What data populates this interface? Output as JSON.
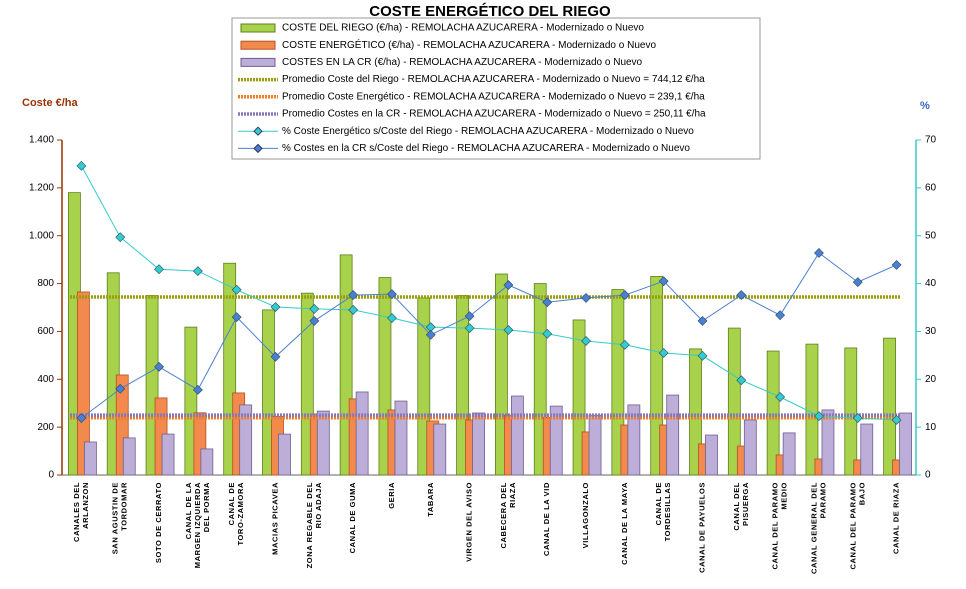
{
  "chart_data": {
    "type": "bar",
    "title": "COSTE ENERGÉTICO DEL RIEGO",
    "y_label": "Coste €/ha",
    "y2_label": "%",
    "categories": [
      "CANALES DEL ARLANZON",
      "SAN AGUSTIN DE TORDOMAR",
      "SOTO DE CERRATO",
      "CANAL DE LA MARGEN IZQUIERDA DEL PORMA",
      "CANAL DE TORO-ZAMORA",
      "MACIAS PICAVEA",
      "ZONA REGABLE DEL RIO ADAJA",
      "CANAL DE GUMA",
      "GERIA",
      "TABARA",
      "VIRGEN DEL AVISO",
      "CABECERA DEL RIAZA",
      "CANAL DE LA VID",
      "VILLAGONZALO",
      "CANAL DE LA MAYA",
      "CANAL DE TORDESILLAS",
      "CANAL DE PAYUELOS",
      "CANAL DEL PISUERGA",
      "CANAL DEL PARAMO MEDIO",
      "CANAL GENERAL DEL PARAMO",
      "CANAL DEL PARAMO BAJO",
      "CANAL DE RIAZA"
    ],
    "series": [
      {
        "name": "COSTE DEL RIEGO (€/ha) - REMOLACHA AZUCARERA - Modernizado o Nuevo",
        "type": "bar",
        "color": "#a8d24c",
        "values": [
          1180,
          845,
          750,
          618,
          885,
          690,
          760,
          920,
          825,
          740,
          750,
          840,
          800,
          648,
          775,
          830,
          527,
          614,
          518,
          547,
          531,
          572
        ]
      },
      {
        "name": "COSTE ENERGÉTICO (€/ha) - REMOLACHA AZUCARERA - Modernizado o Nuevo",
        "type": "bar",
        "color": "#f28a4e",
        "values": [
          765,
          418,
          322,
          260,
          343,
          245,
          255,
          318,
          272,
          226,
          230,
          250,
          240,
          180,
          209,
          209,
          130,
          121,
          84,
          67,
          63,
          63
        ]
      },
      {
        "name": "COSTES EN LA CR (€/ha) - REMOLACHA AZUCARERA - Modernizado o Nuevo",
        "type": "bar",
        "color": "#bcaed8",
        "values": [
          138,
          155,
          171,
          109,
          293,
          171,
          267,
          347,
          309,
          213,
          259,
          330,
          288,
          250,
          293,
          334,
          167,
          230,
          176,
          272,
          213,
          259
        ]
      },
      {
        "name": "Promedio Coste del Riego - REMOLACHA AZUCARERA - Modernizado o Nuevo = 744,12 €/ha",
        "type": "hline",
        "color": "#9c9c10",
        "value": 744.12
      },
      {
        "name": "Promedio Coste Energético - REMOLACHA AZUCARERA - Modernizado o Nuevo = 239,1 €/ha",
        "type": "hline",
        "color": "#f07c28",
        "value": 239.1
      },
      {
        "name": "Promedio Costes en la CR - REMOLACHA AZUCARERA - Modernizado o Nuevo = 250,11 €/ha",
        "type": "hline",
        "color": "#8878b8",
        "value": 250.11
      },
      {
        "name": "% Coste Energético s/Coste del Riego - REMOLACHA AZUCARERA - Modernizado o Nuevo",
        "type": "line",
        "axis": "y2",
        "color": "#33cccc",
        "values": [
          64.6,
          49.7,
          43.0,
          42.6,
          38.7,
          35.1,
          34.7,
          34.5,
          32.8,
          30.9,
          30.7,
          30.3,
          29.5,
          28.0,
          27.2,
          25.5,
          24.9,
          19.8,
          16.3,
          12.3,
          11.9,
          11.5
        ]
      },
      {
        "name": "% Costes en la CR s/Coste del Riego - REMOLACHA AZUCARERA - Modernizado o Nuevo",
        "type": "line",
        "axis": "y2",
        "color": "#4a80d0",
        "values": [
          11.9,
          18.0,
          22.6,
          17.8,
          33.0,
          24.7,
          32.2,
          37.6,
          37.8,
          29.3,
          33.2,
          39.7,
          36.1,
          37.0,
          37.6,
          40.5,
          32.2,
          37.6,
          33.4,
          46.4,
          40.3,
          43.9
        ]
      }
    ],
    "ylim": [
      0,
      1400
    ],
    "yticks": [
      0,
      200,
      400,
      600,
      800,
      {
        "value": 1000,
        "label": "1.000"
      },
      {
        "value": 1200,
        "label": "1.200"
      },
      {
        "value": 1400,
        "label": "1.400"
      }
    ],
    "y2lim": [
      0,
      70
    ],
    "y2ticks": [
      0,
      10,
      20,
      30,
      40,
      50,
      60,
      70
    ],
    "grid": false
  }
}
